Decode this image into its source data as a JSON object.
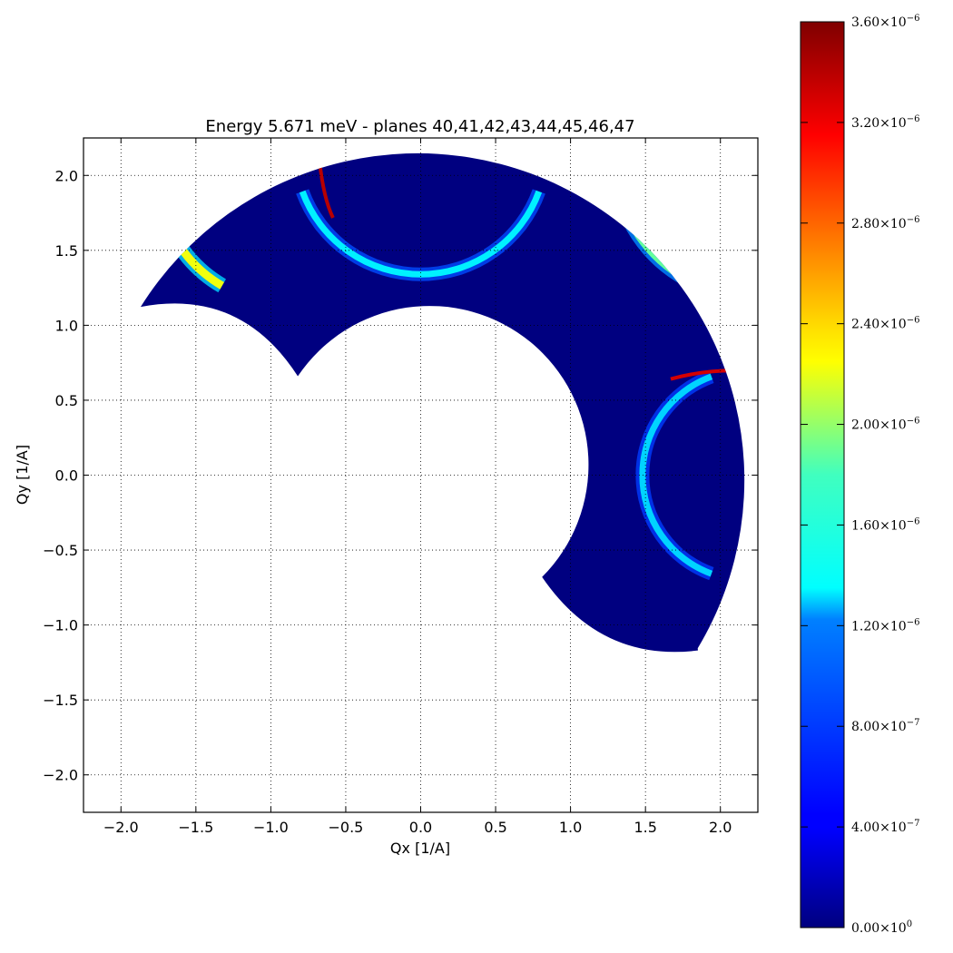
{
  "chart_data": {
    "type": "heatmap",
    "title": "Energy 5.671 meV - planes 40,41,42,43,44,45,46,47",
    "xlabel": "Qx [1/A]",
    "ylabel": "Qy [1/A]",
    "xlim": [
      -2.25,
      2.25
    ],
    "ylim": [
      -2.25,
      2.25
    ],
    "grid": true,
    "x_ticks": [
      -2.0,
      -1.5,
      -1.0,
      -0.5,
      0.0,
      0.5,
      1.0,
      1.5,
      2.0
    ],
    "y_ticks": [
      -2.0,
      -1.5,
      -1.0,
      -0.5,
      0.0,
      0.5,
      1.0,
      1.5,
      2.0
    ],
    "x_tick_labels": [
      "−2.0",
      "−1.5",
      "−1.0",
      "−0.5",
      "0.0",
      "0.5",
      "1.0",
      "1.5",
      "2.0"
    ],
    "y_tick_labels": [
      "−2.0",
      "−1.5",
      "−1.0",
      "−0.5",
      "0.0",
      "0.5",
      "1.0",
      "1.5",
      "2.0"
    ],
    "colormap": "jet",
    "background_value": 0.0,
    "coverage": {
      "shape": "annular sector",
      "outer_radius": 2.18,
      "inner_radius": 1.06,
      "angle_start_deg": -32,
      "angle_end_deg": 149,
      "inner_cutout_end_arcs": true
    },
    "features": [
      {
        "type": "ring",
        "center": [
          0.0,
          2.18
        ],
        "radius": 0.84,
        "peak_value": 1.3e-06,
        "hot_end": [
          -0.67,
          2.05
        ],
        "hot_value": 3.4e-06
      },
      {
        "type": "ring",
        "center": [
          2.18,
          0.0
        ],
        "radius": 0.7,
        "peak_value": 1.2e-06,
        "hot_end": [
          1.85,
          0.69
        ],
        "hot_value": 3.3e-06
      },
      {
        "type": "arc",
        "center": [
          -1.5,
          1.55
        ],
        "peak_value": 2.2e-06
      },
      {
        "type": "arc",
        "center": [
          1.55,
          1.5
        ],
        "peak_value": 1.7e-06
      }
    ],
    "colorbar": {
      "min": 0.0,
      "max": 3.6e-06,
      "ticks": [
        0,
        4e-07,
        8e-07,
        1.2e-06,
        1.6e-06,
        2e-06,
        2.4e-06,
        2.8e-06,
        3.2e-06,
        3.6e-06
      ],
      "tick_mantissas": [
        "0.00",
        "4.00",
        "8.00",
        "1.20",
        "1.60",
        "2.00",
        "2.40",
        "2.80",
        "3.20",
        "3.60"
      ],
      "tick_exponents": [
        "0",
        "−7",
        "−7",
        "−6",
        "−6",
        "−6",
        "−6",
        "−6",
        "−6",
        "−6"
      ]
    }
  }
}
